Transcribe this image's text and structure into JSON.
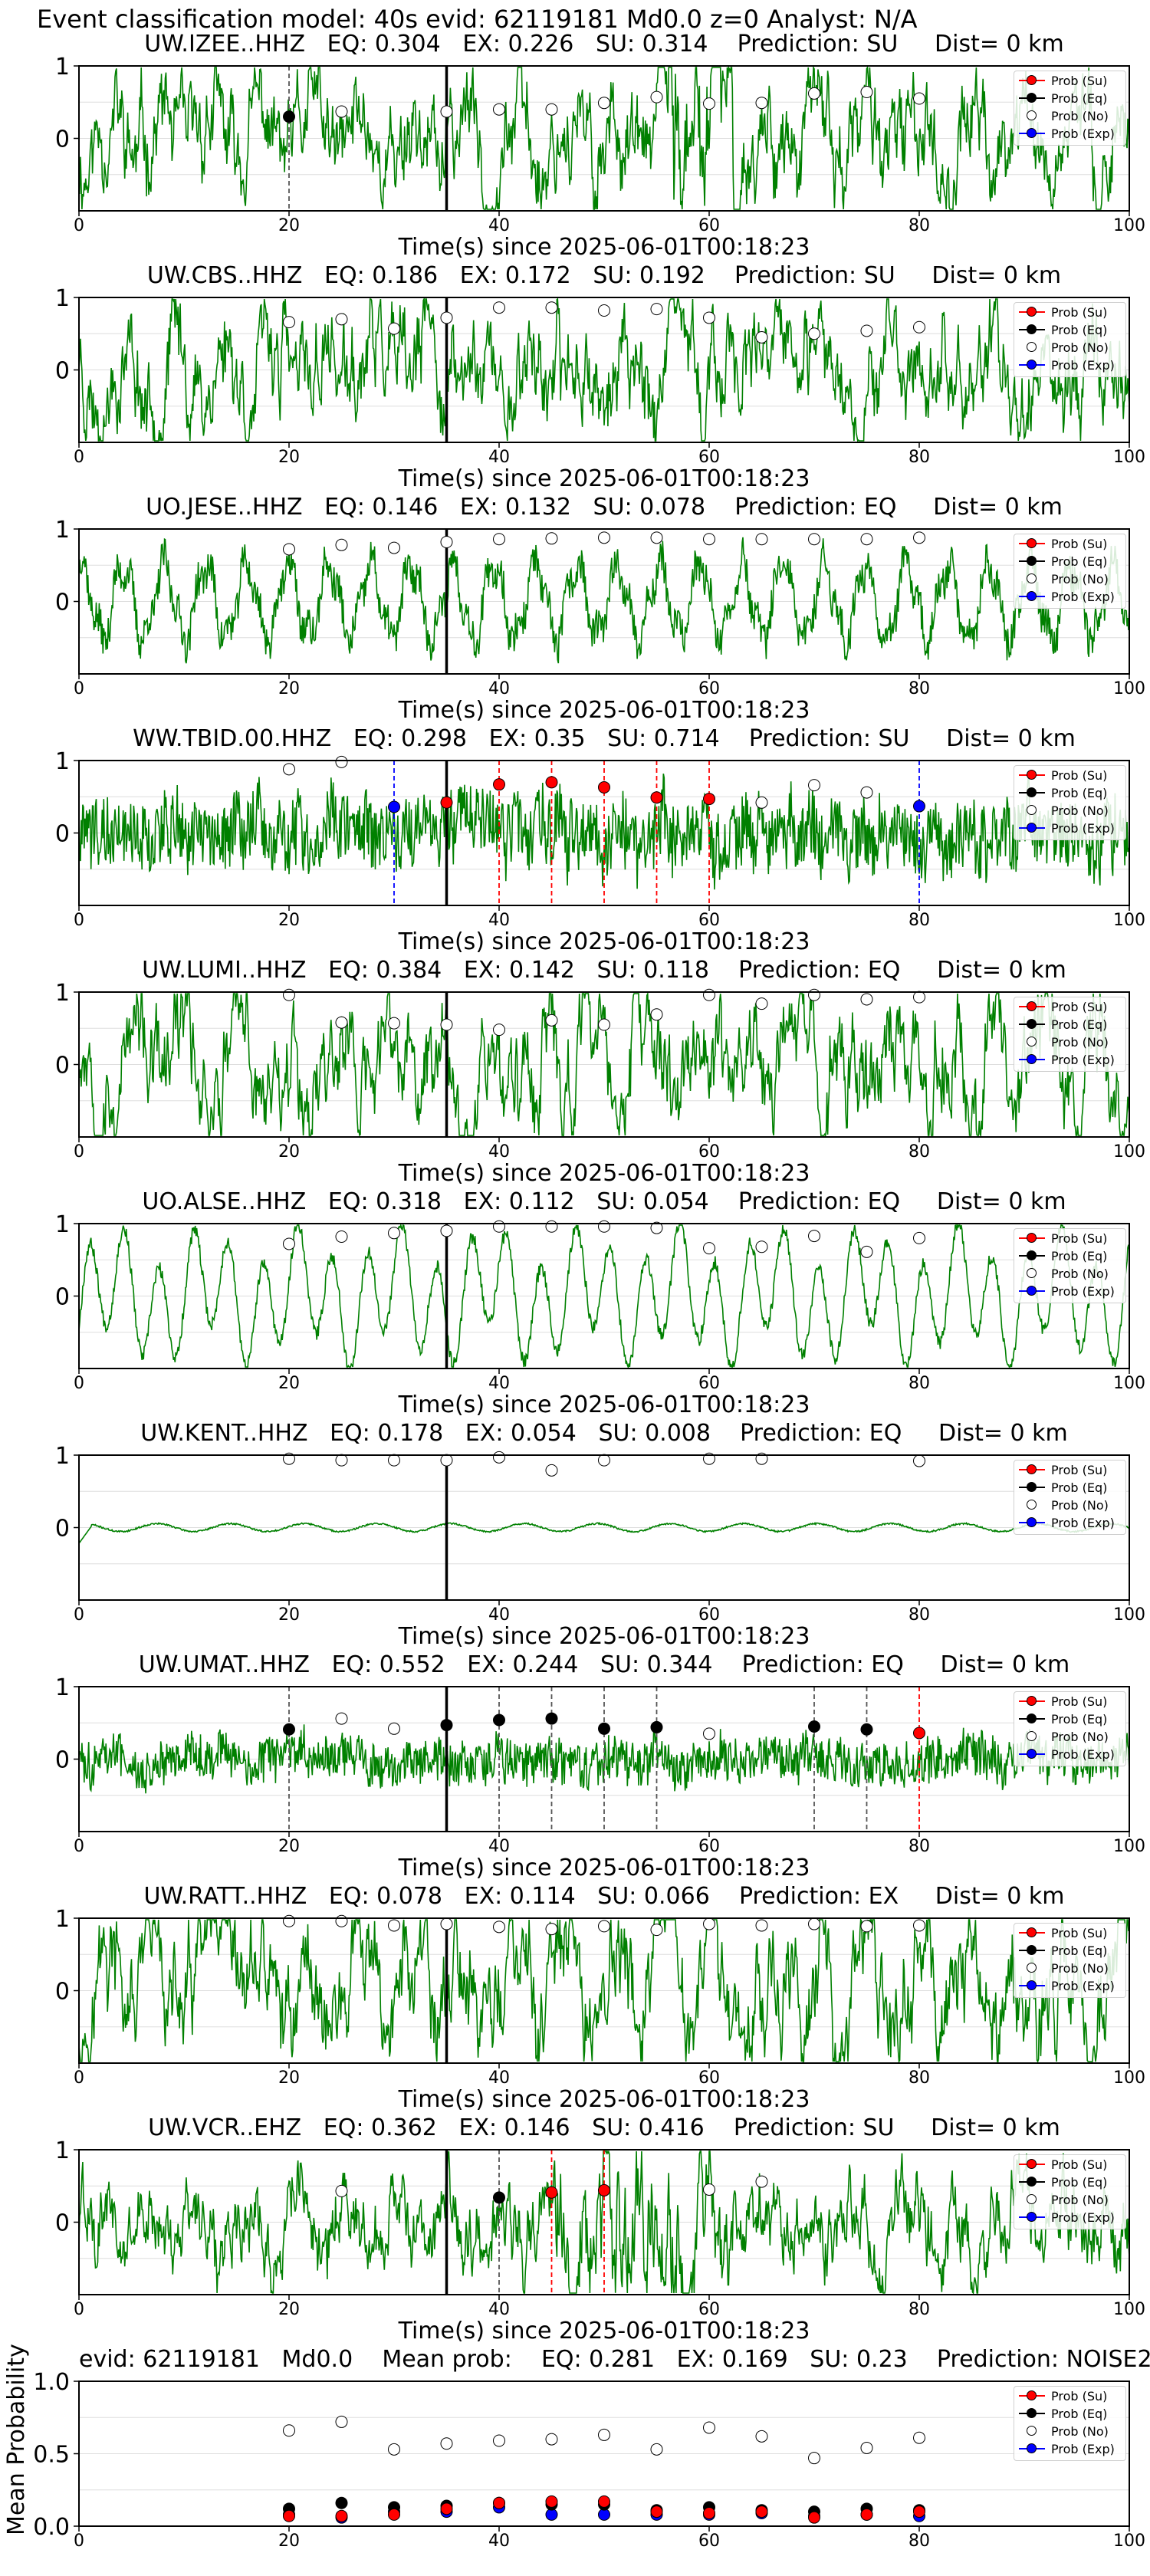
{
  "main_title": "Event classification model: 40s evid: 62119181 Md0.0 z=0 Analyst: N/A",
  "colors": {
    "trace": "#008000",
    "su": "#ff0000",
    "eq": "#000000",
    "no": "#ffffff",
    "exp": "#0000ff",
    "pick_line_su": "#ff0000",
    "pick_line_eq": "#555555",
    "pick_line_exp": "#0000ff",
    "p_arrival": "#000000",
    "grid": "#dddddd"
  },
  "legend": [
    "Prob (Su)",
    "Prob (Eq)",
    "Prob (No)",
    "Prob (Exp)"
  ],
  "xlabel": "Time(s) since 2025-06-01T00:18:23",
  "chart_data": [
    {
      "type": "line",
      "station": "UW.IZEE..HHZ",
      "title": "UW.IZEE..HHZ   EQ: 0.304   EX: 0.226   SU: 0.314    Prediction: SU     Dist= 0 km",
      "xlim": [
        0,
        100
      ],
      "ylim": [
        -1,
        1
      ],
      "xticks": [
        0,
        20,
        40,
        60,
        80,
        100
      ],
      "yticks": [
        1,
        0
      ],
      "p_arrival": 35,
      "style": "burst",
      "amp": 0.55,
      "seed": 11,
      "points": [
        {
          "x": 20,
          "y": 0.3,
          "cls": "eq"
        },
        {
          "x": 25,
          "y": 0.37,
          "cls": "no"
        },
        {
          "x": 35,
          "y": 0.37,
          "cls": "no"
        },
        {
          "x": 40,
          "y": 0.4,
          "cls": "no"
        },
        {
          "x": 45,
          "y": 0.4,
          "cls": "no"
        },
        {
          "x": 50,
          "y": 0.49,
          "cls": "no"
        },
        {
          "x": 55,
          "y": 0.57,
          "cls": "no"
        },
        {
          "x": 60,
          "y": 0.48,
          "cls": "no"
        },
        {
          "x": 65,
          "y": 0.49,
          "cls": "no"
        },
        {
          "x": 70,
          "y": 0.62,
          "cls": "no"
        },
        {
          "x": 75,
          "y": 0.64,
          "cls": "no"
        },
        {
          "x": 80,
          "y": 0.55,
          "cls": "no"
        }
      ],
      "picks": [
        {
          "x": 20,
          "cls": "eq"
        }
      ]
    },
    {
      "type": "line",
      "station": "UW.CBS..HHZ",
      "title": "UW.CBS..HHZ   EQ: 0.186   EX: 0.172   SU: 0.192    Prediction: SU     Dist= 0 km",
      "xlim": [
        0,
        100
      ],
      "ylim": [
        -1,
        1
      ],
      "xticks": [
        0,
        20,
        40,
        60,
        80,
        100
      ],
      "yticks": [
        1,
        0
      ],
      "p_arrival": 35,
      "style": "noisy",
      "amp": 0.55,
      "seed": 23,
      "points": [
        {
          "x": 20,
          "y": 0.66,
          "cls": "no"
        },
        {
          "x": 25,
          "y": 0.7,
          "cls": "no"
        },
        {
          "x": 30,
          "y": 0.57,
          "cls": "no"
        },
        {
          "x": 35,
          "y": 0.72,
          "cls": "no"
        },
        {
          "x": 40,
          "y": 0.86,
          "cls": "no"
        },
        {
          "x": 45,
          "y": 0.86,
          "cls": "no"
        },
        {
          "x": 50,
          "y": 0.82,
          "cls": "no"
        },
        {
          "x": 55,
          "y": 0.84,
          "cls": "no"
        },
        {
          "x": 60,
          "y": 0.72,
          "cls": "no"
        },
        {
          "x": 65,
          "y": 0.45,
          "cls": "no"
        },
        {
          "x": 70,
          "y": 0.5,
          "cls": "no"
        },
        {
          "x": 75,
          "y": 0.54,
          "cls": "no"
        },
        {
          "x": 80,
          "y": 0.59,
          "cls": "no"
        }
      ],
      "picks": []
    },
    {
      "type": "line",
      "station": "UO.JESE..HHZ",
      "title": "UO.JESE..HHZ   EQ: 0.146   EX: 0.132   SU: 0.078    Prediction: EQ     Dist= 0 km",
      "xlim": [
        0,
        100
      ],
      "ylim": [
        -1,
        1
      ],
      "xticks": [
        0,
        20,
        40,
        60,
        80,
        100
      ],
      "yticks": [
        1,
        0
      ],
      "p_arrival": 35,
      "style": "wave",
      "amp": 0.6,
      "seed": 37,
      "points": [
        {
          "x": 20,
          "y": 0.72,
          "cls": "no"
        },
        {
          "x": 25,
          "y": 0.78,
          "cls": "no"
        },
        {
          "x": 30,
          "y": 0.74,
          "cls": "no"
        },
        {
          "x": 35,
          "y": 0.82,
          "cls": "no"
        },
        {
          "x": 40,
          "y": 0.86,
          "cls": "no"
        },
        {
          "x": 45,
          "y": 0.87,
          "cls": "no"
        },
        {
          "x": 50,
          "y": 0.88,
          "cls": "no"
        },
        {
          "x": 55,
          "y": 0.88,
          "cls": "no"
        },
        {
          "x": 60,
          "y": 0.86,
          "cls": "no"
        },
        {
          "x": 65,
          "y": 0.86,
          "cls": "no"
        },
        {
          "x": 70,
          "y": 0.86,
          "cls": "no"
        },
        {
          "x": 75,
          "y": 0.86,
          "cls": "no"
        },
        {
          "x": 80,
          "y": 0.88,
          "cls": "no"
        }
      ],
      "picks": []
    },
    {
      "type": "line",
      "station": "WW.TBID.00.HHZ",
      "title": "WW.TBID.00.HHZ   EQ: 0.298   EX: 0.35   SU: 0.714    Prediction: SU     Dist= 0 km",
      "xlim": [
        0,
        100
      ],
      "ylim": [
        -1,
        1
      ],
      "xticks": [
        0,
        20,
        40,
        60,
        80,
        100
      ],
      "yticks": [
        1,
        0
      ],
      "p_arrival": 35,
      "style": "spiky",
      "amp": 0.35,
      "seed": 41,
      "points": [
        {
          "x": 20,
          "y": 0.88,
          "cls": "no"
        },
        {
          "x": 25,
          "y": 0.98,
          "cls": "no"
        },
        {
          "x": 30,
          "y": 0.36,
          "cls": "exp"
        },
        {
          "x": 35,
          "y": 0.42,
          "cls": "su"
        },
        {
          "x": 40,
          "y": 0.67,
          "cls": "su"
        },
        {
          "x": 45,
          "y": 0.7,
          "cls": "su"
        },
        {
          "x": 50,
          "y": 0.63,
          "cls": "su"
        },
        {
          "x": 55,
          "y": 0.49,
          "cls": "su"
        },
        {
          "x": 60,
          "y": 0.47,
          "cls": "su"
        },
        {
          "x": 65,
          "y": 0.42,
          "cls": "no"
        },
        {
          "x": 70,
          "y": 0.66,
          "cls": "no"
        },
        {
          "x": 75,
          "y": 0.56,
          "cls": "no"
        },
        {
          "x": 80,
          "y": 0.37,
          "cls": "exp"
        }
      ],
      "picks": [
        {
          "x": 30,
          "cls": "exp"
        },
        {
          "x": 40,
          "cls": "su"
        },
        {
          "x": 45,
          "cls": "su"
        },
        {
          "x": 50,
          "cls": "su"
        },
        {
          "x": 55,
          "cls": "su"
        },
        {
          "x": 60,
          "cls": "su"
        },
        {
          "x": 80,
          "cls": "exp"
        }
      ]
    },
    {
      "type": "line",
      "station": "UW.LUMI..HHZ",
      "title": "UW.LUMI..HHZ   EQ: 0.384   EX: 0.142   SU: 0.118    Prediction: EQ     Dist= 0 km",
      "xlim": [
        0,
        100
      ],
      "ylim": [
        -1,
        1
      ],
      "xticks": [
        0,
        20,
        40,
        60,
        80,
        100
      ],
      "yticks": [
        1,
        0
      ],
      "p_arrival": 35,
      "style": "noisy",
      "amp": 0.6,
      "seed": 53,
      "points": [
        {
          "x": 20,
          "y": 0.96,
          "cls": "no"
        },
        {
          "x": 25,
          "y": 0.58,
          "cls": "no"
        },
        {
          "x": 30,
          "y": 0.57,
          "cls": "no"
        },
        {
          "x": 35,
          "y": 0.55,
          "cls": "no"
        },
        {
          "x": 40,
          "y": 0.48,
          "cls": "no"
        },
        {
          "x": 45,
          "y": 0.61,
          "cls": "no"
        },
        {
          "x": 50,
          "y": 0.55,
          "cls": "no"
        },
        {
          "x": 55,
          "y": 0.69,
          "cls": "no"
        },
        {
          "x": 60,
          "y": 0.96,
          "cls": "no"
        },
        {
          "x": 65,
          "y": 0.84,
          "cls": "no"
        },
        {
          "x": 70,
          "y": 0.96,
          "cls": "no"
        },
        {
          "x": 75,
          "y": 0.9,
          "cls": "no"
        },
        {
          "x": 80,
          "y": 0.93,
          "cls": "no"
        }
      ],
      "picks": []
    },
    {
      "type": "line",
      "station": "UO.ALSE..HHZ",
      "title": "UO.ALSE..HHZ   EQ: 0.318   EX: 0.112   SU: 0.054    Prediction: EQ     Dist= 0 km",
      "xlim": [
        0,
        100
      ],
      "ylim": [
        -1,
        1
      ],
      "xticks": [
        0,
        20,
        40,
        60,
        80,
        100
      ],
      "yticks": [
        1,
        0
      ],
      "p_arrival": 35,
      "style": "smooth",
      "amp": 0.7,
      "seed": 67,
      "points": [
        {
          "x": 20,
          "y": 0.72,
          "cls": "no"
        },
        {
          "x": 25,
          "y": 0.82,
          "cls": "no"
        },
        {
          "x": 30,
          "y": 0.87,
          "cls": "no"
        },
        {
          "x": 35,
          "y": 0.9,
          "cls": "no"
        },
        {
          "x": 40,
          "y": 0.96,
          "cls": "no"
        },
        {
          "x": 45,
          "y": 0.96,
          "cls": "no"
        },
        {
          "x": 50,
          "y": 0.96,
          "cls": "no"
        },
        {
          "x": 55,
          "y": 0.94,
          "cls": "no"
        },
        {
          "x": 60,
          "y": 0.66,
          "cls": "no"
        },
        {
          "x": 65,
          "y": 0.68,
          "cls": "no"
        },
        {
          "x": 70,
          "y": 0.83,
          "cls": "no"
        },
        {
          "x": 75,
          "y": 0.61,
          "cls": "no"
        },
        {
          "x": 80,
          "y": 0.8,
          "cls": "no"
        }
      ],
      "picks": []
    },
    {
      "type": "line",
      "station": "UW.KENT..HHZ",
      "title": "UW.KENT..HHZ   EQ: 0.178   EX: 0.054   SU: 0.008    Prediction: EQ     Dist= 0 km",
      "xlim": [
        0,
        100
      ],
      "ylim": [
        -1,
        1
      ],
      "xticks": [
        0,
        20,
        40,
        60,
        80,
        100
      ],
      "yticks": [
        1,
        0
      ],
      "p_arrival": 35,
      "style": "quiet",
      "amp": 0.1,
      "seed": 71,
      "points": [
        {
          "x": 20,
          "y": 0.95,
          "cls": "no"
        },
        {
          "x": 25,
          "y": 0.93,
          "cls": "no"
        },
        {
          "x": 30,
          "y": 0.93,
          "cls": "no"
        },
        {
          "x": 35,
          "y": 0.93,
          "cls": "no"
        },
        {
          "x": 40,
          "y": 0.97,
          "cls": "no"
        },
        {
          "x": 45,
          "y": 0.79,
          "cls": "no"
        },
        {
          "x": 50,
          "y": 0.93,
          "cls": "no"
        },
        {
          "x": 60,
          "y": 0.95,
          "cls": "no"
        },
        {
          "x": 65,
          "y": 0.95,
          "cls": "no"
        },
        {
          "x": 80,
          "y": 0.92,
          "cls": "no"
        }
      ],
      "picks": []
    },
    {
      "type": "line",
      "station": "UW.UMAT..HHZ",
      "title": "UW.UMAT..HHZ   EQ: 0.552   EX: 0.244   SU: 0.344    Prediction: EQ     Dist= 0 km",
      "xlim": [
        0,
        100
      ],
      "ylim": [
        -1,
        1
      ],
      "xticks": [
        0,
        20,
        40,
        60,
        80,
        100
      ],
      "yticks": [
        1,
        0
      ],
      "p_arrival": 35,
      "style": "spiky",
      "amp": 0.22,
      "seed": 83,
      "points": [
        {
          "x": 20,
          "y": 0.41,
          "cls": "eq"
        },
        {
          "x": 25,
          "y": 0.56,
          "cls": "no"
        },
        {
          "x": 30,
          "y": 0.42,
          "cls": "no"
        },
        {
          "x": 35,
          "y": 0.47,
          "cls": "eq"
        },
        {
          "x": 40,
          "y": 0.54,
          "cls": "eq"
        },
        {
          "x": 45,
          "y": 0.56,
          "cls": "eq"
        },
        {
          "x": 50,
          "y": 0.42,
          "cls": "eq"
        },
        {
          "x": 55,
          "y": 0.44,
          "cls": "eq"
        },
        {
          "x": 60,
          "y": 0.35,
          "cls": "no"
        },
        {
          "x": 70,
          "y": 0.45,
          "cls": "eq"
        },
        {
          "x": 75,
          "y": 0.41,
          "cls": "eq"
        },
        {
          "x": 80,
          "y": 0.36,
          "cls": "su"
        }
      ],
      "picks": [
        {
          "x": 20,
          "cls": "eq"
        },
        {
          "x": 40,
          "cls": "eq"
        },
        {
          "x": 45,
          "cls": "eq"
        },
        {
          "x": 50,
          "cls": "eq"
        },
        {
          "x": 55,
          "cls": "eq"
        },
        {
          "x": 70,
          "cls": "eq"
        },
        {
          "x": 75,
          "cls": "eq"
        },
        {
          "x": 80,
          "cls": "su"
        }
      ]
    },
    {
      "type": "line",
      "station": "UW.RATT..HHZ",
      "title": "UW.RATT..HHZ   EQ: 0.078   EX: 0.114   SU: 0.066    Prediction: EX     Dist= 0 km",
      "xlim": [
        0,
        100
      ],
      "ylim": [
        -1,
        1
      ],
      "xticks": [
        0,
        20,
        40,
        60,
        80,
        100
      ],
      "yticks": [
        1,
        0
      ],
      "p_arrival": 35,
      "style": "noisy",
      "amp": 0.6,
      "seed": 97,
      "points": [
        {
          "x": 20,
          "y": 0.96,
          "cls": "no"
        },
        {
          "x": 25,
          "y": 0.96,
          "cls": "no"
        },
        {
          "x": 30,
          "y": 0.9,
          "cls": "no"
        },
        {
          "x": 35,
          "y": 0.92,
          "cls": "no"
        },
        {
          "x": 40,
          "y": 0.88,
          "cls": "no"
        },
        {
          "x": 45,
          "y": 0.85,
          "cls": "no"
        },
        {
          "x": 50,
          "y": 0.89,
          "cls": "no"
        },
        {
          "x": 55,
          "y": 0.84,
          "cls": "no"
        },
        {
          "x": 60,
          "y": 0.92,
          "cls": "no"
        },
        {
          "x": 65,
          "y": 0.9,
          "cls": "no"
        },
        {
          "x": 70,
          "y": 0.92,
          "cls": "no"
        },
        {
          "x": 75,
          "y": 0.89,
          "cls": "no"
        },
        {
          "x": 80,
          "y": 0.9,
          "cls": "no"
        }
      ],
      "picks": []
    },
    {
      "type": "line",
      "station": "UW.VCR..EHZ",
      "title": "UW.VCR..EHZ   EQ: 0.362   EX: 0.146   SU: 0.416    Prediction: SU     Dist= 0 km",
      "xlim": [
        0,
        100
      ],
      "ylim": [
        -1,
        1
      ],
      "xticks": [
        0,
        20,
        40,
        60,
        80,
        100
      ],
      "yticks": [
        1,
        0
      ],
      "p_arrival": 35,
      "style": "burst2",
      "amp": 0.45,
      "seed": 101,
      "points": [
        {
          "x": 25,
          "y": 0.43,
          "cls": "no"
        },
        {
          "x": 40,
          "y": 0.34,
          "cls": "eq"
        },
        {
          "x": 45,
          "y": 0.41,
          "cls": "su"
        },
        {
          "x": 50,
          "y": 0.44,
          "cls": "su"
        },
        {
          "x": 60,
          "y": 0.45,
          "cls": "no"
        },
        {
          "x": 65,
          "y": 0.56,
          "cls": "no"
        }
      ],
      "picks": [
        {
          "x": 40,
          "cls": "eq"
        },
        {
          "x": 45,
          "cls": "su"
        },
        {
          "x": 50,
          "cls": "su"
        }
      ]
    },
    {
      "type": "scatter",
      "title": "evid: 62119181   Md0.0    Mean prob:    EQ: 0.281   EX: 0.169   SU: 0.23    Prediction: NOISE2",
      "ylabel": "Mean Probability",
      "xlim": [
        0,
        100
      ],
      "ylim": [
        0,
        1
      ],
      "xticks": [
        0,
        20,
        40,
        60,
        80,
        100
      ],
      "yticks": [
        1.0,
        0.5,
        0.0
      ],
      "x": [
        20,
        25,
        30,
        35,
        40,
        45,
        50,
        55,
        60,
        65,
        70,
        75,
        80
      ],
      "series": [
        {
          "name": "Prob (No)",
          "cls": "no",
          "values": [
            0.66,
            0.72,
            0.53,
            0.57,
            0.59,
            0.6,
            0.63,
            0.53,
            0.68,
            0.62,
            0.47,
            0.54,
            0.61
          ]
        },
        {
          "name": "Prob (Exp)",
          "cls": "exp",
          "values": [
            0.08,
            0.06,
            0.1,
            0.1,
            0.13,
            0.08,
            0.08,
            0.08,
            0.08,
            0.09,
            0.07,
            0.08,
            0.07
          ]
        },
        {
          "name": "Prob (Eq)",
          "cls": "eq",
          "values": [
            0.12,
            0.16,
            0.13,
            0.14,
            0.16,
            0.15,
            0.15,
            0.11,
            0.13,
            0.11,
            0.1,
            0.12,
            0.11
          ]
        },
        {
          "name": "Prob (Su)",
          "cls": "su",
          "values": [
            0.07,
            0.07,
            0.08,
            0.12,
            0.16,
            0.17,
            0.17,
            0.1,
            0.09,
            0.1,
            0.06,
            0.08,
            0.1
          ]
        }
      ]
    }
  ]
}
